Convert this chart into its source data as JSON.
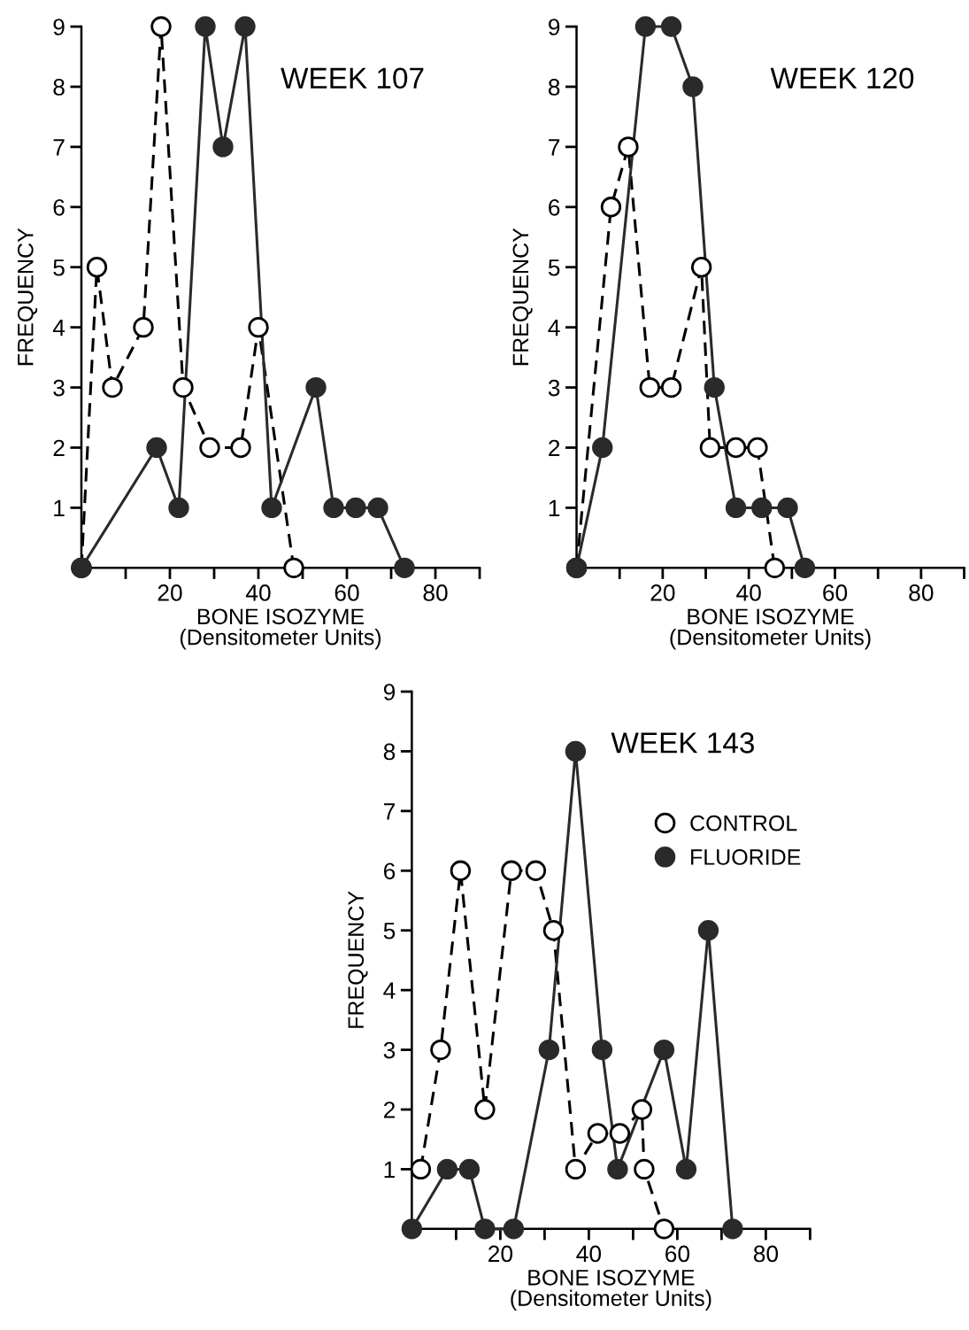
{
  "chart_data": [
    {
      "type": "line",
      "title": "WEEK 107",
      "xlabel": "BONE ISOZYME\n(Densitometer Units)",
      "ylabel": "FREQUENCY",
      "xlim": [
        0,
        90
      ],
      "ylim": [
        0,
        9
      ],
      "xticks": [
        {
          "value": 10,
          "label": null
        },
        20,
        {
          "value": 30,
          "label": null
        },
        40,
        {
          "value": 50,
          "label": null
        },
        60,
        {
          "value": 70,
          "label": null
        },
        80,
        {
          "value": 90,
          "label": null
        }
      ],
      "yticks": [
        1,
        2,
        3,
        4,
        5,
        6,
        7,
        8,
        9
      ],
      "grid": false,
      "legend": false,
      "marker": "circle",
      "series": [
        {
          "color": "#000000",
          "line_style": "dashed",
          "x": [
            0,
            3.5,
            7,
            14,
            18,
            23,
            29,
            36,
            40,
            48
          ],
          "values": [
            0,
            5,
            3,
            4,
            9,
            3,
            2,
            2,
            4,
            0
          ],
          "colors": [
            "#ffffff",
            "#ffffff",
            "#ffffff",
            "#ffffff",
            "#ffffff",
            "#ffffff",
            "#ffffff",
            "#ffffff",
            "#ffffff",
            "#ffffff"
          ]
        },
        {
          "color": "#2a2a2a",
          "line_style": "solid",
          "x": [
            0,
            17,
            22,
            28,
            32,
            37,
            43,
            53,
            57,
            62,
            67,
            73
          ],
          "values": [
            0,
            2,
            1,
            9,
            7,
            9,
            1,
            3,
            1,
            1,
            1,
            0
          ]
        }
      ]
    },
    {
      "type": "line",
      "title": "WEEK 120",
      "xlabel": "BONE ISOZYME\n(Densitometer Units)",
      "ylabel": "FREQUENCY",
      "xlim": [
        0,
        90
      ],
      "ylim": [
        0,
        9
      ],
      "xticks": [
        {
          "value": 10,
          "label": null
        },
        20,
        {
          "value": 30,
          "label": null
        },
        40,
        {
          "value": 50,
          "label": null
        },
        60,
        {
          "value": 70,
          "label": null
        },
        80,
        {
          "value": 90,
          "label": null
        }
      ],
      "yticks": [
        1,
        2,
        3,
        4,
        5,
        6,
        7,
        8,
        9
      ],
      "grid": false,
      "legend": false,
      "marker": "circle",
      "series": [
        {
          "color": "#000000",
          "line_style": "dashed",
          "x": [
            0,
            8,
            12,
            17,
            22,
            29,
            31,
            37,
            42,
            46
          ],
          "values": [
            0,
            6,
            7,
            3,
            3,
            5,
            2,
            2,
            2,
            0
          ],
          "colors": [
            "#ffffff",
            "#ffffff",
            "#ffffff",
            "#ffffff",
            "#ffffff",
            "#ffffff",
            "#ffffff",
            "#ffffff",
            "#ffffff",
            "#ffffff"
          ]
        },
        {
          "color": "#2a2a2a",
          "line_style": "solid",
          "x": [
            0,
            6,
            16,
            22,
            27,
            32,
            37,
            43,
            49,
            53
          ],
          "values": [
            0,
            2,
            9,
            9,
            8,
            3,
            1,
            1,
            1,
            0
          ]
        }
      ]
    },
    {
      "type": "line",
      "title": "WEEK 143",
      "xlabel": "BONE ISOZYME\n(Densitometer Units)",
      "ylabel": "FREQUENCY",
      "xlim": [
        0,
        90
      ],
      "ylim": [
        0,
        9
      ],
      "xticks": [
        {
          "value": 10,
          "label": null
        },
        20,
        {
          "value": 30,
          "label": null
        },
        40,
        {
          "value": 50,
          "label": null
        },
        60,
        {
          "value": 70,
          "label": null
        },
        80,
        {
          "value": 90,
          "label": null
        }
      ],
      "yticks": [
        1,
        2,
        3,
        4,
        5,
        6,
        7,
        8,
        9
      ],
      "grid": false,
      "legend": "right",
      "marker": "circle",
      "series": [
        {
          "name": "CONTROL",
          "color": "#000000",
          "line_style": "dashed",
          "x": [
            2,
            6.5,
            11,
            16.5,
            22.5,
            28,
            32,
            37,
            42,
            47,
            52,
            52.5,
            57
          ],
          "values": [
            1,
            3,
            6,
            2,
            6,
            6,
            5,
            1,
            1.6,
            1.6,
            2,
            1,
            0
          ],
          "colors": [
            "#ffffff",
            "#ffffff",
            "#ffffff",
            "#ffffff",
            "#ffffff",
            "#ffffff",
            "#ffffff",
            "#ffffff",
            "#ffffff",
            "#ffffff",
            "#ffffff",
            "#ffffff",
            "#ffffff"
          ]
        },
        {
          "name": "FLUORIDE",
          "color": "#2a2a2a",
          "line_style": "solid",
          "x": [
            0,
            8,
            13,
            16.5,
            23,
            31,
            37,
            43,
            46.5,
            57,
            62,
            67,
            72.5
          ],
          "values": [
            0,
            1,
            1,
            0,
            0,
            3,
            8,
            3,
            1,
            3,
            1,
            5,
            0
          ]
        }
      ]
    }
  ]
}
